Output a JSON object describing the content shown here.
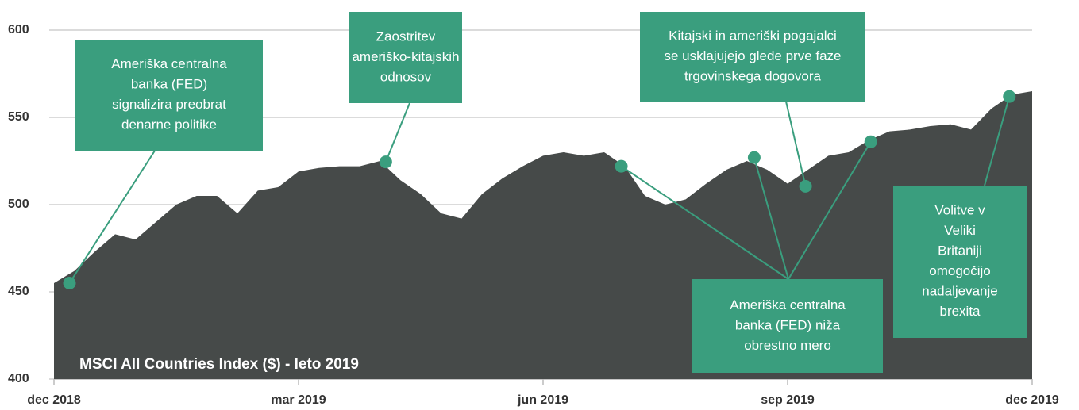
{
  "chart_data": {
    "type": "area",
    "title": "MSCI All Countries Index ($) - leto 2019",
    "color": "#464a49",
    "annotation_color": "#3a9e7e",
    "grid": true,
    "xlim": [
      0,
      12
    ],
    "xticks": [
      {
        "value": 0,
        "label": "dec 2018"
      },
      {
        "value": 3,
        "label": "mar 2019"
      },
      {
        "value": 6,
        "label": "jun 2019"
      },
      {
        "value": 9,
        "label": "sep 2019"
      },
      {
        "value": 12,
        "label": "dec 2019"
      }
    ],
    "ylim": [
      400,
      600
    ],
    "yticks": [
      400,
      450,
      500,
      550,
      600
    ],
    "x": [
      0,
      0.25,
      0.5,
      0.75,
      1,
      1.25,
      1.5,
      1.75,
      2,
      2.25,
      2.5,
      2.75,
      3,
      3.25,
      3.5,
      3.75,
      4,
      4.25,
      4.5,
      4.75,
      5,
      5.25,
      5.5,
      5.75,
      6,
      6.25,
      6.5,
      6.75,
      7,
      7.25,
      7.5,
      7.75,
      8,
      8.25,
      8.5,
      8.75,
      9,
      9.25,
      9.5,
      9.75,
      10,
      10.25,
      10.5,
      10.75,
      11,
      11.25,
      11.5,
      11.75,
      12
    ],
    "values": [
      455,
      462,
      473,
      483,
      480,
      490,
      500,
      505,
      505,
      495,
      508,
      510,
      519,
      521,
      522,
      522,
      525,
      514,
      506,
      495,
      492,
      506,
      515,
      522,
      528,
      530,
      528,
      530,
      522,
      505,
      500,
      503,
      512,
      520,
      525,
      520,
      512,
      520,
      528,
      530,
      537,
      542,
      543,
      545,
      546,
      543,
      555,
      563,
      565
    ],
    "annotations": [
      {
        "lines": [
          "Ameriška centralna",
          "banka (FED)",
          "signalizira preobrat",
          "denarne politike"
        ],
        "points": [
          {
            "x": 0.19,
            "y": 455
          }
        ]
      },
      {
        "lines": [
          "Zaostritev",
          "ameriško-kitajskih",
          "odnosov"
        ],
        "points": [
          {
            "x": 4.07,
            "y": 524.5
          }
        ]
      },
      {
        "lines": [
          "Kitajski in ameriški pogajalci",
          "se usklajujejo glede prve faze",
          "trgovinskega dogovora"
        ],
        "points": [
          {
            "x": 9.22,
            "y": 510.5
          }
        ]
      },
      {
        "lines": [
          "Ameriška centralna",
          "banka (FED) niža",
          "obrestno mero"
        ],
        "points": [
          {
            "x": 6.96,
            "y": 522
          },
          {
            "x": 8.59,
            "y": 527
          },
          {
            "x": 10.02,
            "y": 536
          }
        ]
      },
      {
        "lines": [
          "Volitve v",
          "Veliki",
          "Britaniji",
          "omogočijo",
          "nadaljevanje",
          "brexita"
        ],
        "points": [
          {
            "x": 11.72,
            "y": 562
          }
        ]
      }
    ]
  }
}
